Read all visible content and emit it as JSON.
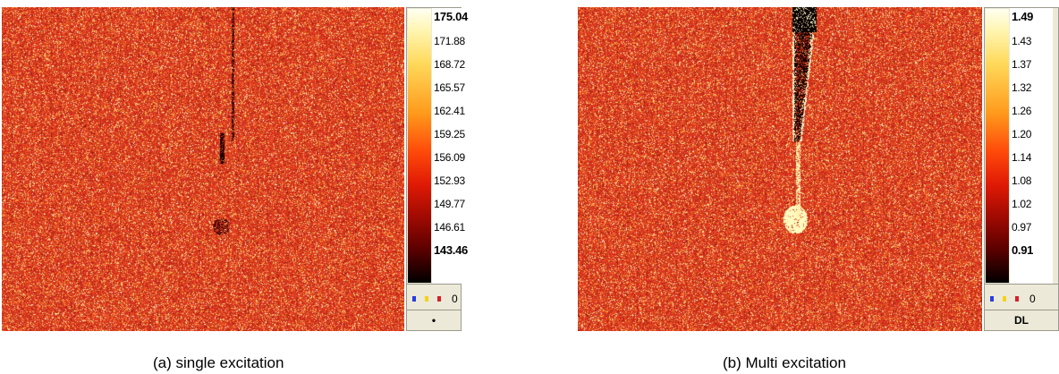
{
  "panels": [
    {
      "caption": "(a) single excitation",
      "colorbar": {
        "max": "175.04",
        "ticks": [
          "171.88",
          "168.72",
          "165.57",
          "162.41",
          "159.25",
          "156.09",
          "152.93",
          "149.77",
          "146.61"
        ],
        "min": "143.46",
        "zero_label": "0",
        "bottom_label": "•"
      }
    },
    {
      "caption": "(b) Multi  excitation",
      "colorbar": {
        "max": "1.49",
        "ticks": [
          "1.43",
          "1.37",
          "1.32",
          "1.26",
          "1.20",
          "1.14",
          "1.08",
          "1.02",
          "0.97"
        ],
        "min": "0.91",
        "zero_label": "0",
        "bottom_label": "DL"
      }
    }
  ],
  "colors": {
    "background_red": "#c93520",
    "hot_yellow": "#fff5b0",
    "dot_blue": "#2a3de0",
    "dot_yellow": "#f4d21a",
    "dot_red": "#d8202a"
  }
}
